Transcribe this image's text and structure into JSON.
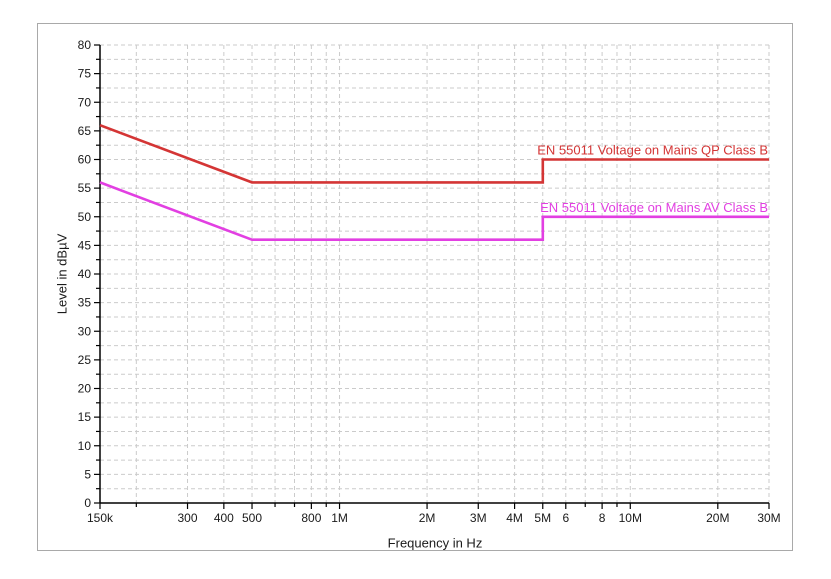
{
  "window": {
    "background_color": "#ffffff",
    "panel_border_color": "#a9a9a9",
    "grid_color": "#cbcbcb",
    "axis_color": "#000000",
    "text_color": "#1a1a1a"
  },
  "chart_data": {
    "type": "line",
    "title": "",
    "xlabel": "Frequency in Hz",
    "ylabel": "Level in dBµV",
    "x_scale": "log",
    "xlim": [
      150000,
      30000000
    ],
    "ylim": [
      0,
      80
    ],
    "y_minor_step": 2.5,
    "y_label_step": 5,
    "grid": "dashed, at every x tick and every 2.5 dB",
    "legend_position": "labels right-aligned above each line",
    "x_ticks": [
      {
        "value": 150000,
        "label": "150k",
        "major": true
      },
      {
        "value": 200000,
        "label": "",
        "major": false
      },
      {
        "value": 300000,
        "label": "300",
        "major": true
      },
      {
        "value": 400000,
        "label": "400",
        "major": true
      },
      {
        "value": 500000,
        "label": "500",
        "major": true
      },
      {
        "value": 600000,
        "label": "",
        "major": false
      },
      {
        "value": 700000,
        "label": "",
        "major": false
      },
      {
        "value": 800000,
        "label": "800",
        "major": true
      },
      {
        "value": 900000,
        "label": "",
        "major": false
      },
      {
        "value": 1000000,
        "label": "1M",
        "major": true
      },
      {
        "value": 2000000,
        "label": "2M",
        "major": true
      },
      {
        "value": 3000000,
        "label": "3M",
        "major": true
      },
      {
        "value": 4000000,
        "label": "4M",
        "major": true
      },
      {
        "value": 5000000,
        "label": "5M",
        "major": true
      },
      {
        "value": 6000000,
        "label": "6",
        "major": true
      },
      {
        "value": 7000000,
        "label": "",
        "major": false
      },
      {
        "value": 8000000,
        "label": "8",
        "major": true
      },
      {
        "value": 9000000,
        "label": "",
        "major": false
      },
      {
        "value": 10000000,
        "label": "10M",
        "major": true
      },
      {
        "value": 20000000,
        "label": "20M",
        "major": true
      },
      {
        "value": 30000000,
        "label": "30M",
        "major": true
      }
    ],
    "y_ticks": [
      {
        "value": 0,
        "label": "0"
      },
      {
        "value": 5,
        "label": "5"
      },
      {
        "value": 10,
        "label": "10"
      },
      {
        "value": 15,
        "label": "15"
      },
      {
        "value": 20,
        "label": "20"
      },
      {
        "value": 25,
        "label": "25"
      },
      {
        "value": 30,
        "label": "30"
      },
      {
        "value": 35,
        "label": "35"
      },
      {
        "value": 40,
        "label": "40"
      },
      {
        "value": 45,
        "label": "45"
      },
      {
        "value": 50,
        "label": "50"
      },
      {
        "value": 55,
        "label": "55"
      },
      {
        "value": 60,
        "label": "60"
      },
      {
        "value": 65,
        "label": "65"
      },
      {
        "value": 70,
        "label": "70"
      },
      {
        "value": 75,
        "label": "75"
      },
      {
        "value": 80,
        "label": "80"
      }
    ],
    "series": [
      {
        "name": "EN 55011 Voltage on Mains QP Class B",
        "color": "#d43535",
        "points": [
          [
            150000,
            66
          ],
          [
            500000,
            56
          ],
          [
            5000000,
            56
          ],
          [
            5000000,
            60
          ],
          [
            30000000,
            60
          ]
        ]
      },
      {
        "name": "EN 55011 Voltage on Mains AV Class B",
        "color": "#e23fe2",
        "points": [
          [
            150000,
            56
          ],
          [
            500000,
            46
          ],
          [
            5000000,
            46
          ],
          [
            5000000,
            50
          ],
          [
            30000000,
            50
          ]
        ]
      }
    ]
  }
}
